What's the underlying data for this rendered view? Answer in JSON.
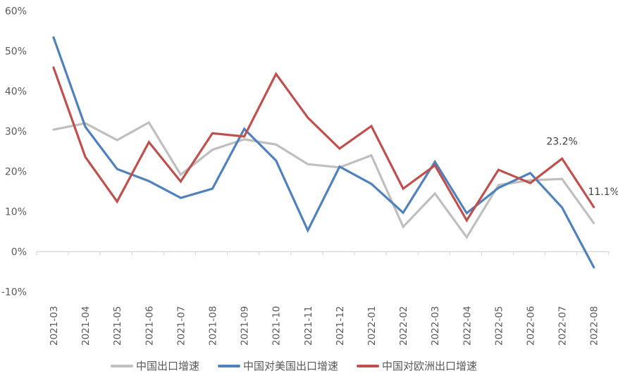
{
  "chart_data": {
    "type": "line",
    "title": "",
    "xlabel": "",
    "ylabel": "",
    "ylim": [
      -0.1,
      0.6
    ],
    "yticks": [
      "-10%",
      "0%",
      "10%",
      "20%",
      "30%",
      "40%",
      "50%",
      "60%"
    ],
    "ytick_values": [
      -10,
      0,
      10,
      20,
      30,
      40,
      50,
      60
    ],
    "grid": false,
    "legend_position": "bottom",
    "categories": [
      "2021-03",
      "2021-04",
      "2021-05",
      "2021-06",
      "2021-07",
      "2021-08",
      "2021-09",
      "2021-10",
      "2021-11",
      "2021-12",
      "2022-01",
      "2022-02",
      "2022-03",
      "2022-04",
      "2022-05",
      "2022-06",
      "2022-07",
      "2022-08"
    ],
    "series": [
      {
        "name": "中国出口增速",
        "color": "#BFBFBF",
        "values": [
          30.4,
          32.0,
          27.8,
          32.2,
          19.2,
          25.4,
          28.0,
          26.7,
          21.8,
          21.0,
          24.0,
          6.2,
          14.5,
          3.6,
          16.6,
          17.8,
          18.1,
          7.1
        ]
      },
      {
        "name": "中国对美国出口增速",
        "color": "#4F81BD",
        "values": [
          53.4,
          31.1,
          20.6,
          17.6,
          13.4,
          15.7,
          30.6,
          22.7,
          5.3,
          21.2,
          16.9,
          9.7,
          22.4,
          9.6,
          15.9,
          19.6,
          11.0,
          -3.9
        ]
      },
      {
        "name": "中国对欧洲出口增速",
        "color": "#C0504D",
        "values": [
          45.9,
          23.6,
          12.5,
          27.3,
          17.5,
          29.5,
          28.7,
          44.3,
          33.4,
          25.7,
          31.3,
          15.7,
          21.5,
          7.8,
          20.4,
          17.1,
          23.2,
          11.1
        ]
      }
    ],
    "annotations": [
      {
        "text": "23.2%",
        "category": "2022-07",
        "series": "中国对欧洲出口增速"
      },
      {
        "text": "11.1%",
        "category": "2022-08",
        "series": "中国对欧洲出口增速"
      }
    ]
  },
  "legend": {
    "items": [
      {
        "label": "中国出口增速",
        "color": "#BFBFBF"
      },
      {
        "label": "中国对美国出口增速",
        "color": "#4F81BD"
      },
      {
        "label": "中国对欧洲出口增速",
        "color": "#C0504D"
      }
    ]
  }
}
